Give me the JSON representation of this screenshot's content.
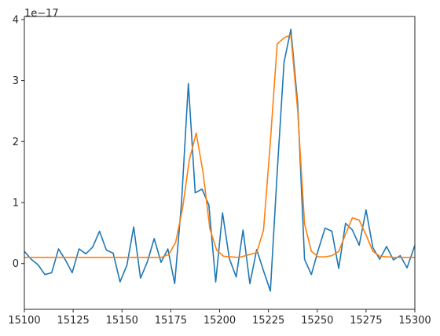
{
  "chart_data": {
    "type": "line",
    "title": "",
    "xlabel": "",
    "ylabel": "",
    "y_offset_text": "1e−17",
    "xlim": [
      15100,
      15300
    ],
    "ylim": [
      -0.75,
      4.05
    ],
    "x_ticks": [
      15100,
      15125,
      15150,
      15175,
      15200,
      15225,
      15250,
      15275,
      15300
    ],
    "y_ticks": [
      0,
      1,
      2,
      3,
      4
    ],
    "grid": false,
    "legend": "none",
    "series": [
      {
        "color": "#1f77b4",
        "x": [
          15100,
          15103.5,
          15107,
          15110.5,
          15114,
          15117.5,
          15121,
          15124.5,
          15128,
          15131.5,
          15135,
          15138.5,
          15142,
          15145.5,
          15149,
          15152.5,
          15156,
          15159.5,
          15163,
          15166.5,
          15170,
          15173.5,
          15177,
          15180.5,
          15184,
          15187.5,
          15191,
          15194.5,
          15198,
          15201.5,
          15205,
          15208.5,
          15212,
          15215.5,
          15219,
          15222.5,
          15226,
          15229.5,
          15233,
          15236.5,
          15240,
          15243.5,
          15247,
          15250.5,
          15254,
          15257.5,
          15261,
          15264.5,
          15268,
          15271.5,
          15275,
          15278.5,
          15282,
          15285.5,
          15289,
          15292.5,
          15296,
          15300
        ],
        "y": [
          0.2,
          0.07,
          -0.02,
          -0.18,
          -0.15,
          0.24,
          0.06,
          -0.15,
          0.24,
          0.16,
          0.27,
          0.53,
          0.22,
          0.17,
          -0.3,
          -0.03,
          0.6,
          -0.24,
          0.03,
          0.41,
          0.02,
          0.24,
          -0.33,
          1.0,
          2.95,
          1.16,
          1.22,
          0.96,
          -0.3,
          0.83,
          0.08,
          -0.22,
          0.55,
          -0.33,
          0.23,
          -0.12,
          -0.45,
          1.5,
          3.3,
          3.84,
          2.62,
          0.07,
          -0.18,
          0.22,
          0.58,
          0.53,
          -0.08,
          0.66,
          0.55,
          0.3,
          0.88,
          0.26,
          0.07,
          0.28,
          0.06,
          0.13,
          -0.07,
          0.3
        ]
      },
      {
        "color": "#ff7f0e",
        "x": [
          15100,
          15110,
          15120,
          15130,
          15140,
          15150,
          15160,
          15170,
          15174,
          15177.5,
          15181,
          15184.5,
          15188,
          15191.5,
          15195,
          15198.5,
          15202,
          15210,
          15219,
          15222.5,
          15226,
          15229.5,
          15233,
          15236.5,
          15240,
          15243.5,
          15247,
          15250.5,
          15254,
          15257.5,
          15261,
          15264.5,
          15268,
          15271.5,
          15275,
          15278.5,
          15282,
          15290,
          15300
        ],
        "y": [
          0.1,
          0.1,
          0.1,
          0.1,
          0.1,
          0.1,
          0.1,
          0.1,
          0.15,
          0.35,
          0.9,
          1.7,
          2.14,
          1.5,
          0.57,
          0.22,
          0.12,
          0.1,
          0.18,
          0.55,
          2.0,
          3.6,
          3.7,
          3.75,
          2.5,
          0.65,
          0.2,
          0.11,
          0.11,
          0.13,
          0.2,
          0.48,
          0.75,
          0.71,
          0.47,
          0.2,
          0.12,
          0.1,
          0.1
        ]
      }
    ]
  }
}
